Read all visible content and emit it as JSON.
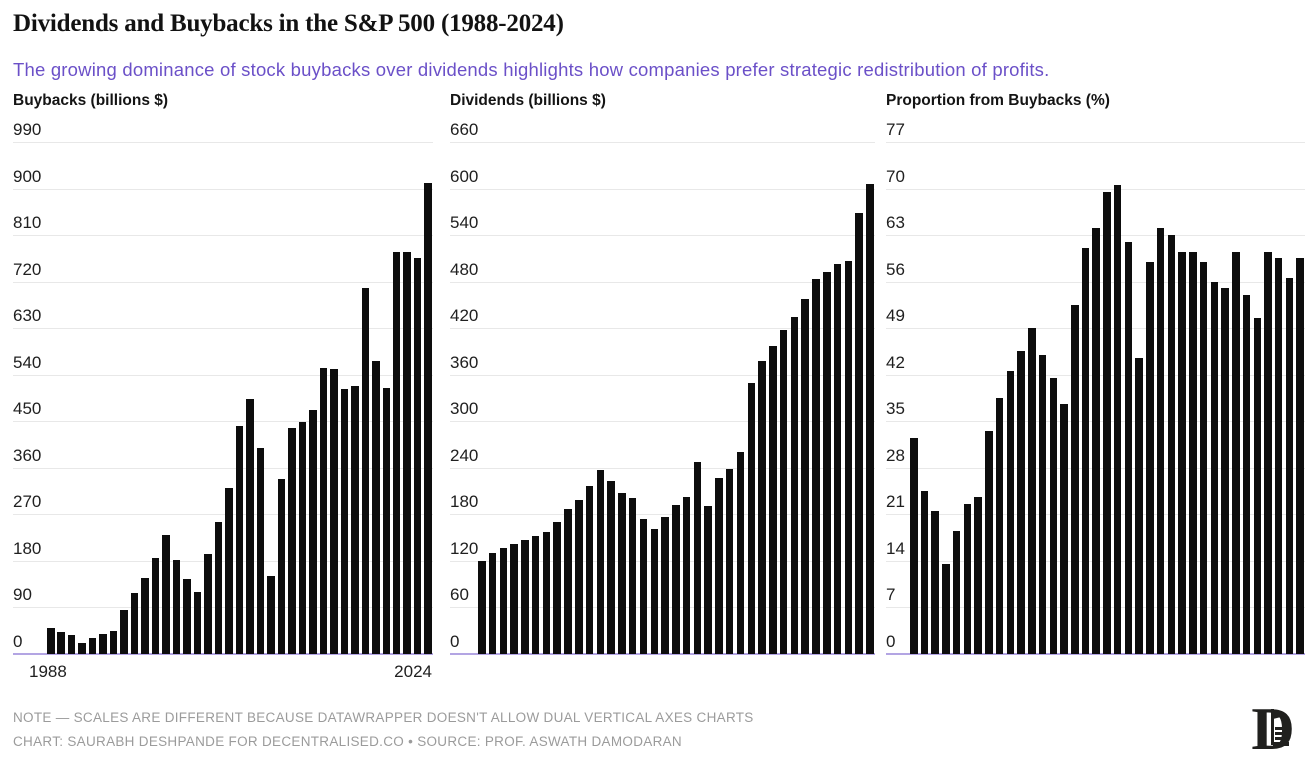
{
  "header": {
    "title": "Dividends and Buybacks in the S&P 500 (1988-2024)",
    "subtitle": "The growing dominance of stock buybacks over dividends highlights how companies prefer strategic redistribution of profits."
  },
  "footer": {
    "note": "NOTE — SCALES ARE DIFFERENT BECAUSE DATAWRAPPER DOESN'T ALLOW DUAL VERTICAL AXES CHARTS",
    "credit": "CHART: SAURABH DESHPANDE FOR DECENTRALISED.CO • SOURCE: PROF. ASWATH DAMODARAN",
    "logo_letter": "D"
  },
  "colors": {
    "bar": "#0d0d0d",
    "grid": "#e8e8e8",
    "axis_baseline": "#b3a5e3",
    "subtitle": "#6b50c8",
    "footer_text": "#9b9b9b",
    "text": "#1c1c1c"
  },
  "chart_data": [
    {
      "type": "bar",
      "title": "Buybacks (billions $)",
      "categories": [
        1988,
        1989,
        1990,
        1991,
        1992,
        1993,
        1994,
        1995,
        1996,
        1997,
        1998,
        1999,
        2000,
        2001,
        2002,
        2003,
        2004,
        2005,
        2006,
        2007,
        2008,
        2009,
        2010,
        2011,
        2012,
        2013,
        2014,
        2015,
        2016,
        2017,
        2018,
        2019,
        2020,
        2021,
        2022,
        2023,
        2024
      ],
      "values": [
        49,
        41,
        35,
        20,
        30,
        38,
        44,
        85,
        118,
        146,
        185,
        230,
        182,
        145,
        119,
        192,
        254,
        321,
        441,
        493,
        397,
        150,
        338,
        436,
        448,
        471,
        552,
        550,
        512,
        517,
        707,
        566,
        513,
        777,
        777,
        766,
        911
      ],
      "xlabel": "",
      "ylabel": "Buybacks (billions $)",
      "ylim": [
        0,
        990
      ],
      "yticks": [
        990,
        900,
        810,
        720,
        630,
        540,
        450,
        360,
        270,
        180,
        90,
        0
      ],
      "x_axis_labels": [
        "1988",
        "2024"
      ],
      "grid": true,
      "legend": "none"
    },
    {
      "type": "bar",
      "title": "Dividends (billions $)",
      "categories": [
        1988,
        1989,
        1990,
        1991,
        1992,
        1993,
        1994,
        1995,
        1996,
        1997,
        1998,
        1999,
        2000,
        2001,
        2002,
        2003,
        2004,
        2005,
        2006,
        2007,
        2008,
        2009,
        2010,
        2011,
        2012,
        2013,
        2014,
        2015,
        2016,
        2017,
        2018,
        2019,
        2020,
        2021,
        2022,
        2023,
        2024
      ],
      "values": [
        120,
        130,
        136,
        142,
        147,
        152,
        157,
        170,
        187,
        198,
        216,
        237,
        222,
        207,
        201,
        173,
        161,
        176,
        192,
        202,
        247,
        190,
        227,
        238,
        260,
        349,
        377,
        397,
        418,
        434,
        458,
        483,
        492,
        503,
        507,
        568,
        606
      ],
      "xlabel": "",
      "ylabel": "Dividends (billions $)",
      "ylim": [
        0,
        660
      ],
      "yticks": [
        660,
        600,
        540,
        480,
        420,
        360,
        300,
        240,
        180,
        120,
        60,
        0
      ],
      "x_axis_labels": [],
      "grid": true,
      "legend": "none"
    },
    {
      "type": "bar",
      "title": "Proportion from Buybacks (%)",
      "categories": [
        1988,
        1989,
        1990,
        1991,
        1992,
        1993,
        1994,
        1995,
        1996,
        1997,
        1998,
        1999,
        2000,
        2001,
        2002,
        2003,
        2004,
        2005,
        2006,
        2007,
        2008,
        2009,
        2010,
        2011,
        2012,
        2013,
        2014,
        2015,
        2016,
        2017,
        2018,
        2019,
        2020,
        2021,
        2022,
        2023,
        2024
      ],
      "values": [
        32.5,
        24.5,
        21.5,
        13.5,
        18.5,
        22.5,
        23.5,
        33.5,
        38.5,
        42.5,
        45.5,
        49,
        45,
        41.5,
        37.5,
        52.5,
        61,
        64,
        69.5,
        70.5,
        62,
        44.5,
        59,
        64,
        63,
        60.5,
        60.5,
        59,
        56,
        55,
        60.5,
        54,
        50.5,
        60.5,
        59.5,
        56.5,
        59.5
      ],
      "xlabel": "",
      "ylabel": "Proportion from Buybacks (%)",
      "ylim": [
        0,
        77
      ],
      "yticks": [
        77,
        70,
        63,
        56,
        49,
        42,
        35,
        28,
        21,
        14,
        7,
        0
      ],
      "x_axis_labels": [],
      "grid": true,
      "legend": "none"
    }
  ]
}
